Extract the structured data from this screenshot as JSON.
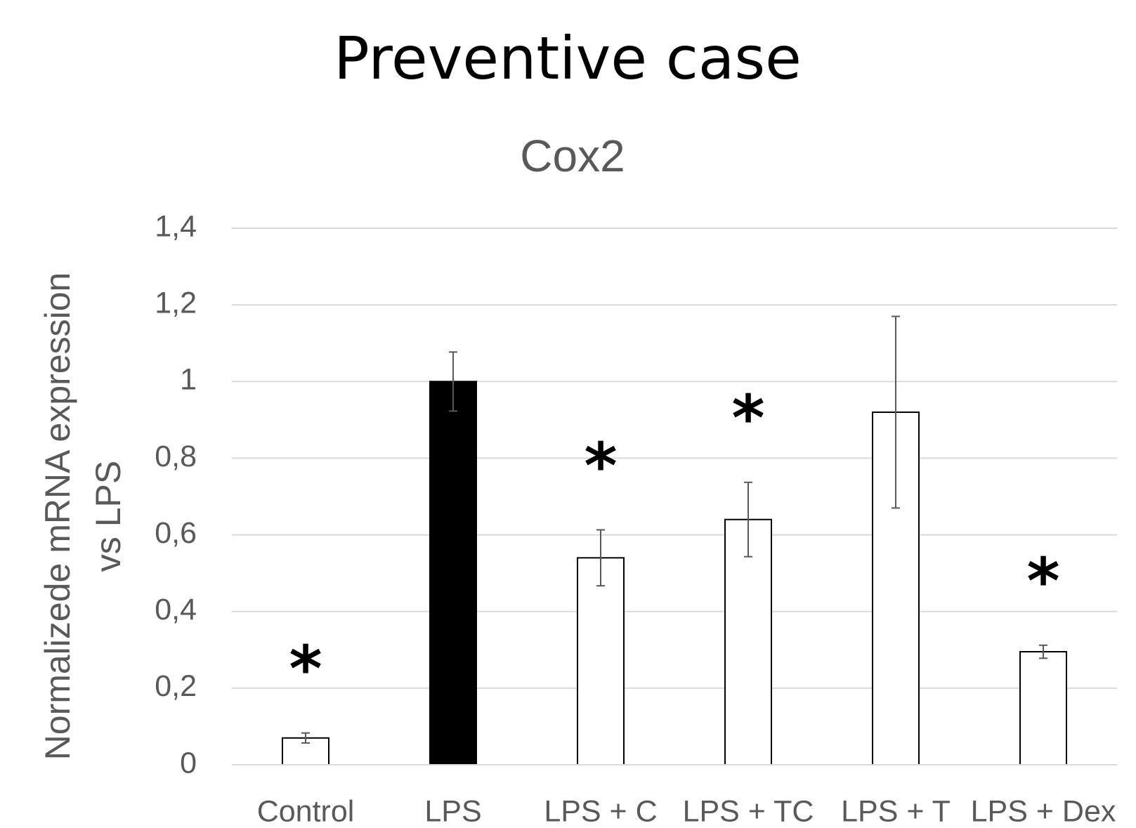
{
  "chart_data": {
    "type": "bar",
    "title": "Preventive case",
    "subtitle": "Cox2",
    "y_label_lines": [
      "Normalizede mRNA expression",
      "vs LPS"
    ],
    "categories": [
      "Control",
      "LPS",
      "LPS + C",
      "LPS + TC",
      "LPS + T",
      "LPS + Dex"
    ],
    "values": [
      0.07,
      1.0,
      0.54,
      0.64,
      0.92,
      0.295
    ],
    "errors": [
      0.013,
      0.077,
      0.073,
      0.097,
      0.25,
      0.017
    ],
    "colors": [
      "#ffffff",
      "#000000",
      "#ffffff",
      "#ffffff",
      "#ffffff",
      "#ffffff"
    ],
    "significance": [
      "*",
      null,
      "*",
      "*",
      null,
      "*"
    ],
    "ylim": [
      0,
      1.4
    ],
    "yticks": [
      0,
      {
        "value": 0.2,
        "label": "0,2"
      },
      {
        "value": 0.4,
        "label": "0,4"
      },
      {
        "value": 0.6,
        "label": "0,6"
      },
      {
        "value": 0.8,
        "label": "0,8"
      },
      1,
      {
        "value": 1.2,
        "label": "1,2"
      },
      {
        "value": 1.4,
        "label": "1,4"
      }
    ],
    "grid": true
  }
}
